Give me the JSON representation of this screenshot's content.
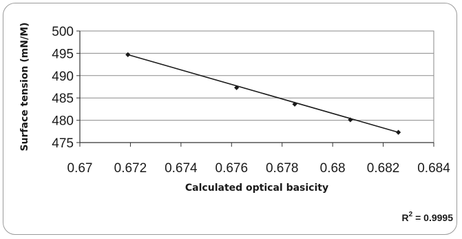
{
  "chart_data": {
    "type": "scatter",
    "title": "",
    "xlabel": "Calculated optical basicity",
    "ylabel": "Surface tension (mN/M)",
    "xlim": [
      0.67,
      0.684
    ],
    "ylim": [
      475,
      500
    ],
    "x_ticks": [
      "0.67",
      "0.672",
      "0.674",
      "0.676",
      "0.678",
      "0.68",
      "0.682",
      "0.684"
    ],
    "y_ticks": [
      "475",
      "480",
      "485",
      "490",
      "495",
      "500"
    ],
    "grid": "horizontal",
    "legend": "none",
    "series": [
      {
        "x": [
          0.6719,
          0.6762,
          0.6785,
          0.6807,
          0.6826
        ],
        "y": [
          494.7,
          487.3,
          483.6,
          480.1,
          477.3
        ],
        "marker": "diamond",
        "color": "#1a1a1a"
      }
    ],
    "trendline": {
      "type": "linear",
      "x": [
        0.6719,
        0.6826
      ],
      "y": [
        494.7,
        477.3
      ],
      "color": "#1a1a1a"
    },
    "annotation": {
      "r2_label": "R",
      "r2_sup": "2",
      "r2_value": " = 0.9995"
    }
  }
}
